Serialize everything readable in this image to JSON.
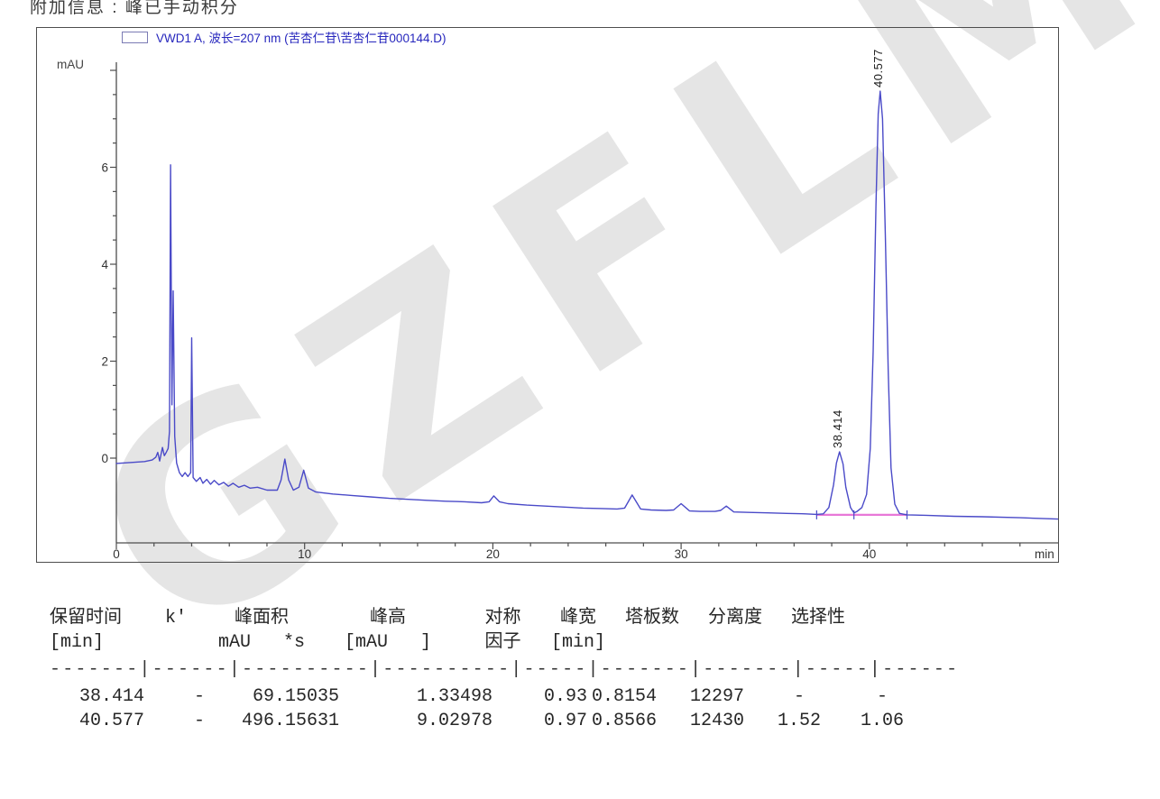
{
  "header": {
    "additional_info": "附加信息 :  峰已手动积分"
  },
  "watermark": {
    "text": "GZFLM",
    "color": "#bababa"
  },
  "chart": {
    "legend": "VWD1 A, 波长=207 nm (苦杏仁苷\\苦杏仁苷000144.D)",
    "ylabel": "mAU",
    "xlabel": "min",
    "trace_color": "#4a4ac8",
    "baseline_color": "#e878d8",
    "legend_color": "#2626bd"
  },
  "chart_data": {
    "type": "line",
    "title": "VWD1 A, 波长=207 nm (苦杏仁苷\\苦杏仁苷000144.D)",
    "xlabel": "min",
    "ylabel": "mAU",
    "xlim": [
      0,
      50.5
    ],
    "ylim": [
      -1.6,
      8.2
    ],
    "x_ticks_labeled": [
      0,
      10,
      20,
      30,
      40
    ],
    "x_tick_minor_step": 2,
    "y_ticks_labeled": [
      0,
      2,
      4,
      6
    ],
    "y_tick_minor_step": 0.5,
    "grid": false,
    "legend_position": "top-left",
    "trace": [
      [
        0,
        -0.11
      ],
      [
        0.8,
        -0.09
      ],
      [
        1.5,
        -0.07
      ],
      [
        1.9,
        -0.04
      ],
      [
        2.1,
        0.02
      ],
      [
        2.2,
        0.12
      ],
      [
        2.3,
        -0.06
      ],
      [
        2.45,
        0.22
      ],
      [
        2.55,
        0.05
      ],
      [
        2.65,
        0.12
      ],
      [
        2.75,
        0.2
      ],
      [
        2.82,
        0.55
      ],
      [
        2.88,
        6.05
      ],
      [
        2.95,
        1.1
      ],
      [
        3.02,
        3.45
      ],
      [
        3.1,
        0.45
      ],
      [
        3.2,
        -0.1
      ],
      [
        3.35,
        -0.3
      ],
      [
        3.5,
        -0.38
      ],
      [
        3.65,
        -0.3
      ],
      [
        3.8,
        -0.38
      ],
      [
        3.95,
        -0.3
      ],
      [
        4.0,
        2.48
      ],
      [
        4.08,
        -0.4
      ],
      [
        4.25,
        -0.48
      ],
      [
        4.45,
        -0.4
      ],
      [
        4.6,
        -0.52
      ],
      [
        4.8,
        -0.44
      ],
      [
        5.0,
        -0.54
      ],
      [
        5.2,
        -0.46
      ],
      [
        5.45,
        -0.55
      ],
      [
        5.7,
        -0.5
      ],
      [
        5.95,
        -0.58
      ],
      [
        6.2,
        -0.52
      ],
      [
        6.5,
        -0.6
      ],
      [
        6.8,
        -0.56
      ],
      [
        7.1,
        -0.62
      ],
      [
        7.5,
        -0.6
      ],
      [
        8.0,
        -0.66
      ],
      [
        8.55,
        -0.66
      ],
      [
        8.75,
        -0.45
      ],
      [
        8.95,
        -0.02
      ],
      [
        9.15,
        -0.45
      ],
      [
        9.4,
        -0.66
      ],
      [
        9.7,
        -0.6
      ],
      [
        9.95,
        -0.25
      ],
      [
        10.2,
        -0.62
      ],
      [
        10.6,
        -0.7
      ],
      [
        11.5,
        -0.74
      ],
      [
        12.5,
        -0.77
      ],
      [
        13.5,
        -0.8
      ],
      [
        14.5,
        -0.83
      ],
      [
        15.5,
        -0.85
      ],
      [
        16.5,
        -0.87
      ],
      [
        17.5,
        -0.89
      ],
      [
        18.5,
        -0.9
      ],
      [
        19.4,
        -0.92
      ],
      [
        19.8,
        -0.9
      ],
      [
        20.05,
        -0.78
      ],
      [
        20.35,
        -0.9
      ],
      [
        20.8,
        -0.94
      ],
      [
        21.8,
        -0.97
      ],
      [
        22.8,
        -0.99
      ],
      [
        23.8,
        -1.01
      ],
      [
        24.8,
        -1.03
      ],
      [
        25.8,
        -1.04
      ],
      [
        26.6,
        -1.05
      ],
      [
        27.0,
        -1.03
      ],
      [
        27.4,
        -0.76
      ],
      [
        27.85,
        -1.05
      ],
      [
        28.4,
        -1.07
      ],
      [
        29.2,
        -1.08
      ],
      [
        29.6,
        -1.07
      ],
      [
        30.0,
        -0.94
      ],
      [
        30.45,
        -1.09
      ],
      [
        31.0,
        -1.1
      ],
      [
        31.8,
        -1.1
      ],
      [
        32.1,
        -1.08
      ],
      [
        32.4,
        -0.99
      ],
      [
        32.8,
        -1.11
      ],
      [
        33.6,
        -1.12
      ],
      [
        34.6,
        -1.13
      ],
      [
        35.6,
        -1.14
      ],
      [
        36.6,
        -1.15
      ],
      [
        37.2,
        -1.16
      ],
      [
        37.55,
        -1.15
      ],
      [
        37.85,
        -1.02
      ],
      [
        38.1,
        -0.55
      ],
      [
        38.25,
        -0.1
      ],
      [
        38.414,
        0.13
      ],
      [
        38.6,
        -0.12
      ],
      [
        38.75,
        -0.6
      ],
      [
        39.0,
        -1.02
      ],
      [
        39.18,
        -1.13
      ],
      [
        39.35,
        -1.1
      ],
      [
        39.6,
        -1.02
      ],
      [
        39.85,
        -0.75
      ],
      [
        40.05,
        0.2
      ],
      [
        40.2,
        2.2
      ],
      [
        40.35,
        5.2
      ],
      [
        40.47,
        7.1
      ],
      [
        40.577,
        7.57
      ],
      [
        40.7,
        7.0
      ],
      [
        40.85,
        4.6
      ],
      [
        41.0,
        1.8
      ],
      [
        41.15,
        -0.2
      ],
      [
        41.35,
        -0.95
      ],
      [
        41.6,
        -1.14
      ],
      [
        42.0,
        -1.17
      ],
      [
        43.0,
        -1.18
      ],
      [
        44.5,
        -1.2
      ],
      [
        46.0,
        -1.21
      ],
      [
        48.0,
        -1.23
      ],
      [
        50.2,
        -1.26
      ]
    ],
    "peaks": [
      {
        "rt_label": "38.414",
        "rt": 38.414,
        "apex_mau": 0.13
      },
      {
        "rt_label": "40.577",
        "rt": 40.577,
        "apex_mau": 7.57
      }
    ],
    "manual_baseline": {
      "t_start": 37.2,
      "t_end": 42.0,
      "mau": -1.17,
      "tick_ts": [
        37.2,
        39.18,
        42.0
      ]
    }
  },
  "table": {
    "columns": [
      {
        "label": "保留时间",
        "unit": "[min]"
      },
      {
        "label": "k'",
        "unit": ""
      },
      {
        "label": "峰面积",
        "unit": "mAU   *s"
      },
      {
        "label": "峰高",
        "unit": "[mAU   ]"
      },
      {
        "label": "对称",
        "unit": "因子"
      },
      {
        "label": "峰宽",
        "unit": "[min]"
      },
      {
        "label": "塔板数",
        "unit": ""
      },
      {
        "label": "分离度",
        "unit": ""
      },
      {
        "label": "选择性",
        "unit": ""
      }
    ],
    "separator": "-------|------|----------|----------|-----|-------|-------|-----|------",
    "rows": [
      [
        "38.414",
        "-",
        "69.15035",
        "1.33498",
        "0.93",
        "0.8154",
        "12297",
        "-",
        "-"
      ],
      [
        "40.577",
        "-",
        "496.15631",
        "9.02978",
        "0.97",
        "0.8566",
        "12430",
        "1.52",
        "1.06"
      ]
    ]
  }
}
